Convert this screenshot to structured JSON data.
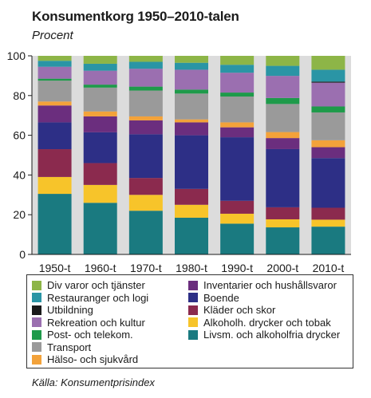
{
  "chart_data": {
    "type": "bar",
    "stacked": true,
    "title": "Konsumentkorg 1950–2010-talen",
    "subtitle": "Procent",
    "source": "Källa: Konsumentprisindex",
    "categories": [
      "1950-t",
      "1960-t",
      "1970-t",
      "1980-t",
      "1990-t",
      "2000-t",
      "2010-t"
    ],
    "ylim": [
      0,
      100
    ],
    "yticks": [
      0,
      20,
      40,
      60,
      80,
      100
    ],
    "grid": false,
    "series": [
      {
        "name": "Livsm. och alkoholfria drycker",
        "color": "#1a7a80",
        "values": [
          30.5,
          26,
          22,
          18.5,
          15.5,
          13.5,
          14
        ]
      },
      {
        "name": "Alkoholh. drycker och tobak",
        "color": "#f7c42a",
        "values": [
          8.5,
          9,
          8,
          6.5,
          5,
          4,
          3.5
        ]
      },
      {
        "name": "Kläder och skor",
        "color": "#8b2a4e",
        "values": [
          14,
          11,
          8.5,
          8,
          6.5,
          6,
          6
        ]
      },
      {
        "name": "Boende",
        "color": "#2d2f86",
        "values": [
          13.5,
          15.5,
          22,
          27,
          32,
          29,
          25
        ]
      },
      {
        "name": "Inventarier och hushållsvaror",
        "color": "#6b2e7e",
        "values": [
          8.5,
          8,
          7,
          6.5,
          5,
          5.5,
          5.5
        ]
      },
      {
        "name": "Hälso- och sjukvård",
        "color": "#f3a23a",
        "values": [
          2,
          2.5,
          2,
          1.5,
          2.5,
          3,
          3.5
        ]
      },
      {
        "name": "Transport",
        "color": "#9a9a9a",
        "values": [
          10.5,
          12,
          13,
          13,
          13,
          14,
          14
        ]
      },
      {
        "name": "Post- och telekom.",
        "color": "#1e9a4a",
        "values": [
          1,
          1.5,
          2,
          2,
          2,
          3,
          3
        ]
      },
      {
        "name": "Rekreation och kultur",
        "color": "#9b6fb0",
        "values": [
          6,
          7,
          9,
          10,
          10,
          11,
          12
        ]
      },
      {
        "name": "Utbildning",
        "color": "#1a1a1a",
        "values": [
          0,
          0,
          0,
          0,
          0,
          0,
          0.5
        ]
      },
      {
        "name": "Restauranger och logi",
        "color": "#2a95a5",
        "values": [
          3,
          3.5,
          3.5,
          3.5,
          4,
          5,
          6
        ]
      },
      {
        "name": "Div varor och tjänster",
        "color": "#8db547",
        "values": [
          2.5,
          4,
          3,
          3.5,
          4.5,
          5,
          7
        ]
      }
    ],
    "legend_order": [
      "Div varor och tjänster",
      "Restauranger och logi",
      "Utbildning",
      "Rekreation och kultur",
      "Post- och telekom.",
      "Transport",
      "Hälso- och sjukvård",
      "Inventarier och hushållsvaror",
      "Boende",
      "Kläder och skor",
      "Alkoholh. drycker och tobak",
      "Livsm. och alkoholfria drycker"
    ],
    "plot_background": "#dcdcdc"
  }
}
